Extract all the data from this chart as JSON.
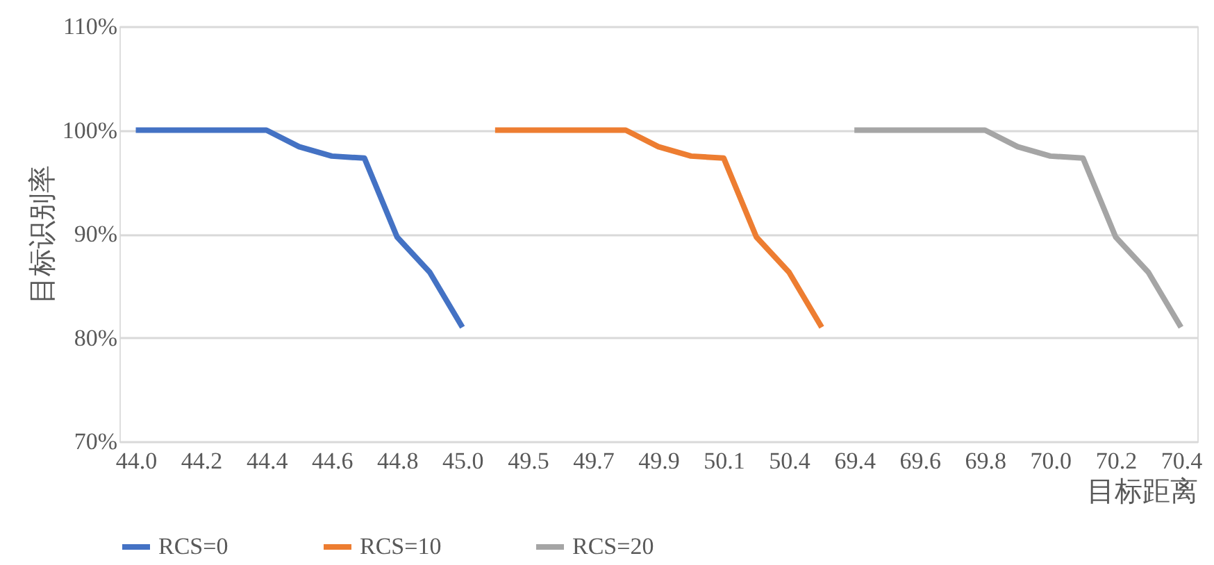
{
  "chart_data": {
    "type": "line",
    "xlabel": "目标距离",
    "ylabel": "目标识别率",
    "categories": [
      "44.0",
      null,
      "44.2",
      null,
      "44.4",
      null,
      "44.6",
      null,
      "44.8",
      null,
      "45.0",
      null,
      "49.5",
      null,
      "49.7",
      null,
      "49.9",
      null,
      "50.1",
      null,
      "50.4",
      null,
      "69.4",
      null,
      "69.6",
      null,
      "69.8",
      null,
      "70.0",
      null,
      "70.2",
      null,
      "70.4"
    ],
    "series": [
      {
        "name": "RCS=0",
        "color": "#4472c4",
        "values": [
          100,
          100,
          100,
          100,
          100,
          98.4,
          97.5,
          97.3,
          89.7,
          86.3,
          81.0,
          null,
          null,
          null,
          null,
          null,
          null,
          null,
          null,
          null,
          null,
          null,
          null,
          null,
          null,
          null,
          null,
          null,
          null,
          null,
          null,
          null,
          null
        ]
      },
      {
        "name": "RCS=10",
        "color": "#ed7d31",
        "values": [
          null,
          null,
          null,
          null,
          null,
          null,
          null,
          null,
          null,
          null,
          null,
          100,
          100,
          100,
          100,
          100,
          98.4,
          97.5,
          97.3,
          89.7,
          86.3,
          81.0,
          null,
          null,
          null,
          null,
          null,
          null,
          null,
          null,
          null,
          null,
          null
        ]
      },
      {
        "name": "RCS=20",
        "color": "#a5a5a5",
        "values": [
          null,
          null,
          null,
          null,
          null,
          null,
          null,
          null,
          null,
          null,
          null,
          null,
          null,
          null,
          null,
          null,
          null,
          null,
          null,
          null,
          null,
          null,
          100,
          100,
          100,
          100,
          100,
          98.4,
          97.5,
          97.3,
          89.7,
          86.3,
          81.0
        ]
      }
    ],
    "ylim": [
      70,
      110
    ],
    "yticks": [
      {
        "value": 70,
        "label": "70%"
      },
      {
        "value": 80,
        "label": "80%"
      },
      {
        "value": 90,
        "label": "90%"
      },
      {
        "value": 100,
        "label": "100%"
      },
      {
        "value": 110,
        "label": "110%"
      }
    ],
    "grid": "y",
    "legend": "bottom",
    "marker": "none",
    "line_style": "solid"
  }
}
